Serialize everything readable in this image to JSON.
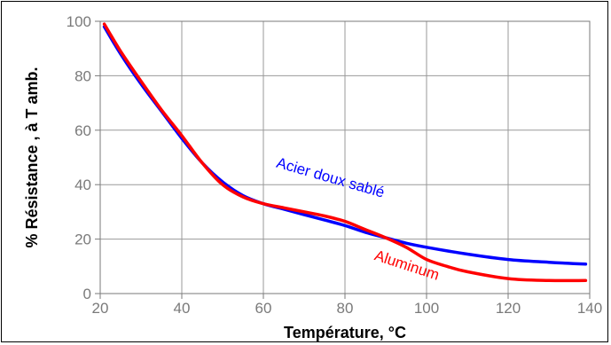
{
  "chart_data": {
    "type": "line",
    "xlabel": "Température, °C",
    "ylabel": "% Résistance , à T amb.",
    "xlim": [
      20,
      140
    ],
    "ylim": [
      0,
      100
    ],
    "x_ticks": [
      20,
      40,
      60,
      80,
      100,
      120,
      140
    ],
    "y_ticks": [
      0,
      20,
      40,
      60,
      80,
      100
    ],
    "grid": true,
    "legend": "inline labels on curves",
    "series": [
      {
        "name": "Acier doux sablé",
        "color": "#0000ff",
        "x": [
          21,
          25,
          30,
          35,
          40,
          45,
          50,
          55,
          60,
          65,
          70,
          75,
          80,
          85,
          90,
          95,
          100,
          110,
          120,
          130,
          139
        ],
        "y": [
          98,
          88,
          77,
          67,
          57,
          48,
          41,
          36,
          33,
          31,
          29,
          27,
          25,
          22.5,
          20.5,
          18.5,
          17,
          14.5,
          12.5,
          11.5,
          10.8
        ]
      },
      {
        "name": "Aluminum",
        "color": "#ff0000",
        "x": [
          21,
          25,
          30,
          35,
          40,
          45,
          50,
          55,
          60,
          65,
          70,
          75,
          80,
          85,
          90,
          95,
          100,
          105,
          110,
          120,
          130,
          139
        ],
        "y": [
          99,
          89,
          78,
          67.5,
          58,
          48,
          40,
          35.5,
          33,
          31.5,
          30,
          28.5,
          26.5,
          23.5,
          20.5,
          17,
          12.5,
          10,
          8,
          5.5,
          4.8,
          4.8
        ]
      }
    ]
  }
}
